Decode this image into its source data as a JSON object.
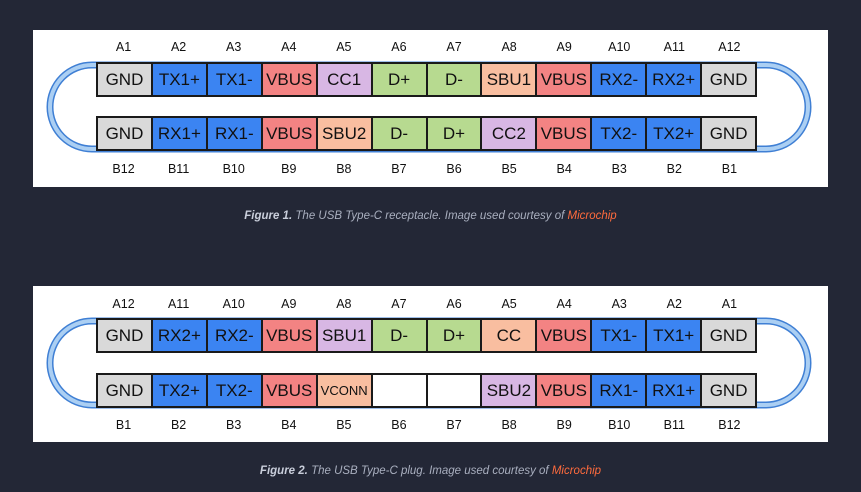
{
  "figures": [
    {
      "top_labels": [
        "A1",
        "A2",
        "A3",
        "A4",
        "A5",
        "A6",
        "A7",
        "A8",
        "A9",
        "A10",
        "A11",
        "A12"
      ],
      "top_row": [
        {
          "label": "GND",
          "fill": "#d9d9d9"
        },
        {
          "label": "TX1+",
          "fill": "#3b84f2"
        },
        {
          "label": "TX1-",
          "fill": "#3b84f2"
        },
        {
          "label": "VBUS",
          "fill": "#f38383"
        },
        {
          "label": "CC1",
          "fill": "#d8b7e4"
        },
        {
          "label": "D+",
          "fill": "#b7da90"
        },
        {
          "label": "D-",
          "fill": "#b7da90"
        },
        {
          "label": "SBU1",
          "fill": "#f9bea0"
        },
        {
          "label": "VBUS",
          "fill": "#f38383"
        },
        {
          "label": "RX2-",
          "fill": "#3b84f2"
        },
        {
          "label": "RX2+",
          "fill": "#3b84f2"
        },
        {
          "label": "GND",
          "fill": "#d9d9d9"
        }
      ],
      "bottom_row": [
        {
          "label": "GND",
          "fill": "#d9d9d9"
        },
        {
          "label": "RX1+",
          "fill": "#3b84f2"
        },
        {
          "label": "RX1-",
          "fill": "#3b84f2"
        },
        {
          "label": "VBUS",
          "fill": "#f38383"
        },
        {
          "label": "SBU2",
          "fill": "#f9bea0"
        },
        {
          "label": "D-",
          "fill": "#b7da90"
        },
        {
          "label": "D+",
          "fill": "#b7da90"
        },
        {
          "label": "CC2",
          "fill": "#d8b7e4"
        },
        {
          "label": "VBUS",
          "fill": "#f38383"
        },
        {
          "label": "TX2-",
          "fill": "#3b84f2"
        },
        {
          "label": "TX2+",
          "fill": "#3b84f2"
        },
        {
          "label": "GND",
          "fill": "#d9d9d9"
        }
      ],
      "bottom_labels": [
        "B12",
        "B11",
        "B10",
        "B9",
        "B8",
        "B7",
        "B6",
        "B5",
        "B4",
        "B3",
        "B2",
        "B1"
      ],
      "caption": {
        "figure": "Figure 1.",
        "text": "The USB Type-C receptacle. Image used courtesy of",
        "link": "Microchip"
      }
    },
    {
      "top_labels": [
        "A12",
        "A11",
        "A10",
        "A9",
        "A8",
        "A7",
        "A6",
        "A5",
        "A4",
        "A3",
        "A2",
        "A1"
      ],
      "top_row": [
        {
          "label": "GND",
          "fill": "#d9d9d9"
        },
        {
          "label": "RX2+",
          "fill": "#3b84f2"
        },
        {
          "label": "RX2-",
          "fill": "#3b84f2"
        },
        {
          "label": "VBUS",
          "fill": "#f38383"
        },
        {
          "label": "SBU1",
          "fill": "#d8b7e4"
        },
        {
          "label": "D-",
          "fill": "#b7da90"
        },
        {
          "label": "D+",
          "fill": "#b7da90"
        },
        {
          "label": "CC",
          "fill": "#f9bea0"
        },
        {
          "label": "VBUS",
          "fill": "#f38383"
        },
        {
          "label": "TX1-",
          "fill": "#3b84f2"
        },
        {
          "label": "TX1+",
          "fill": "#3b84f2"
        },
        {
          "label": "GND",
          "fill": "#d9d9d9"
        }
      ],
      "bottom_row": [
        {
          "label": "GND",
          "fill": "#d9d9d9"
        },
        {
          "label": "TX2+",
          "fill": "#3b84f2"
        },
        {
          "label": "TX2-",
          "fill": "#3b84f2"
        },
        {
          "label": "VBUS",
          "fill": "#f38383"
        },
        {
          "label": "VCONN",
          "fill": "#f9bea0"
        },
        {
          "label": "",
          "fill": "#ffffff"
        },
        {
          "label": "",
          "fill": "#ffffff"
        },
        {
          "label": "SBU2",
          "fill": "#d8b7e4"
        },
        {
          "label": "VBUS",
          "fill": "#f38383"
        },
        {
          "label": "RX1-",
          "fill": "#3b84f2"
        },
        {
          "label": "RX1+",
          "fill": "#3b84f2"
        },
        {
          "label": "GND",
          "fill": "#d9d9d9"
        }
      ],
      "bottom_labels": [
        "B1",
        "B2",
        "B3",
        "B4",
        "B5",
        "B6",
        "B7",
        "B8",
        "B9",
        "B10",
        "B11",
        "B12"
      ],
      "caption": {
        "figure": "Figure 2.",
        "text": "The USB Type-C plug. Image used courtesy of",
        "link": "Microchip"
      }
    }
  ],
  "colors": {
    "background": "#232736",
    "panel": "#ffffff",
    "connector_band": "#abcff3",
    "connector_edge": "#3f7fd4",
    "caption_text": "#a9afbf",
    "caption_strong": "#c9cedb",
    "link": "#ff6b3d"
  }
}
